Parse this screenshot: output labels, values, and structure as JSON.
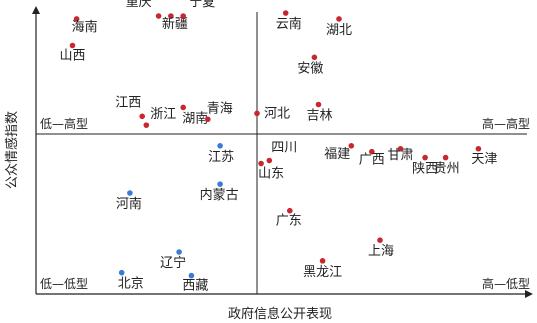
{
  "chart_data": {
    "type": "scatter",
    "xlabel": "政府信息公开表现",
    "ylabel": "公众情感指数",
    "grid": false,
    "legend": "none",
    "quadrant_labels": {
      "top_left": "低—高型",
      "top_right": "高—高型",
      "bottom_left": "低—低型",
      "bottom_right": "高—低型"
    },
    "colors": {
      "red": "#c8282d",
      "blue": "#3a7bd5",
      "axis": "#222222"
    },
    "points": [
      {
        "label": "海南",
        "x": -4.4,
        "y": 3.9,
        "color": "red"
      },
      {
        "label": "重庆",
        "x": -2.4,
        "y": 4.0,
        "color": "red"
      },
      {
        "label": "新疆",
        "x": -2.1,
        "y": 4.0,
        "color": "red"
      },
      {
        "label": "宁夏",
        "x": -1.8,
        "y": 4.0,
        "color": "red"
      },
      {
        "label": "山西",
        "x": -4.5,
        "y": 3.0,
        "color": "red"
      },
      {
        "label": "江西",
        "x": -2.8,
        "y": 0.6,
        "color": "red"
      },
      {
        "label": "浙江",
        "x": -2.7,
        "y": 0.3,
        "color": "red"
      },
      {
        "label": "湖南",
        "x": -1.8,
        "y": 0.9,
        "color": "red"
      },
      {
        "label": "青海",
        "x": -1.2,
        "y": 0.5,
        "color": "red"
      },
      {
        "label": "云南",
        "x": 0.7,
        "y": 4.1,
        "color": "red"
      },
      {
        "label": "湖北",
        "x": 2.0,
        "y": 3.9,
        "color": "red"
      },
      {
        "label": "安徽",
        "x": 1.4,
        "y": 2.6,
        "color": "red"
      },
      {
        "label": "河北",
        "x": 0.0,
        "y": 0.7,
        "color": "red"
      },
      {
        "label": "吉林",
        "x": 1.5,
        "y": 1.0,
        "color": "red"
      },
      {
        "label": "四川",
        "x": 0.3,
        "y": -0.9,
        "color": "red"
      },
      {
        "label": "山东",
        "x": 0.1,
        "y": -1.0,
        "color": "red"
      },
      {
        "label": "福建",
        "x": 2.3,
        "y": -0.4,
        "color": "red"
      },
      {
        "label": "广西",
        "x": 2.8,
        "y": -0.6,
        "color": "red"
      },
      {
        "label": "甘肃",
        "x": 3.5,
        "y": -0.5,
        "color": "red"
      },
      {
        "label": "陕西",
        "x": 4.1,
        "y": -0.8,
        "color": "red"
      },
      {
        "label": "贵州",
        "x": 4.6,
        "y": -0.8,
        "color": "red"
      },
      {
        "label": "天津",
        "x": 5.4,
        "y": -0.5,
        "color": "red"
      },
      {
        "label": "广东",
        "x": 0.8,
        "y": -2.6,
        "color": "red"
      },
      {
        "label": "上海",
        "x": 3.0,
        "y": -3.6,
        "color": "red"
      },
      {
        "label": "黑龙江",
        "x": 1.6,
        "y": -4.3,
        "color": "red"
      },
      {
        "label": "江苏",
        "x": -0.9,
        "y": -0.4,
        "color": "blue"
      },
      {
        "label": "内蒙古",
        "x": -0.9,
        "y": -1.7,
        "color": "blue"
      },
      {
        "label": "河南",
        "x": -3.1,
        "y": -2.0,
        "color": "blue"
      },
      {
        "label": "辽宁",
        "x": -1.9,
        "y": -4.0,
        "color": "blue"
      },
      {
        "label": "北京",
        "x": -3.3,
        "y": -4.7,
        "color": "blue"
      },
      {
        "label": "西藏",
        "x": -1.6,
        "y": -4.8,
        "color": "blue"
      }
    ]
  }
}
